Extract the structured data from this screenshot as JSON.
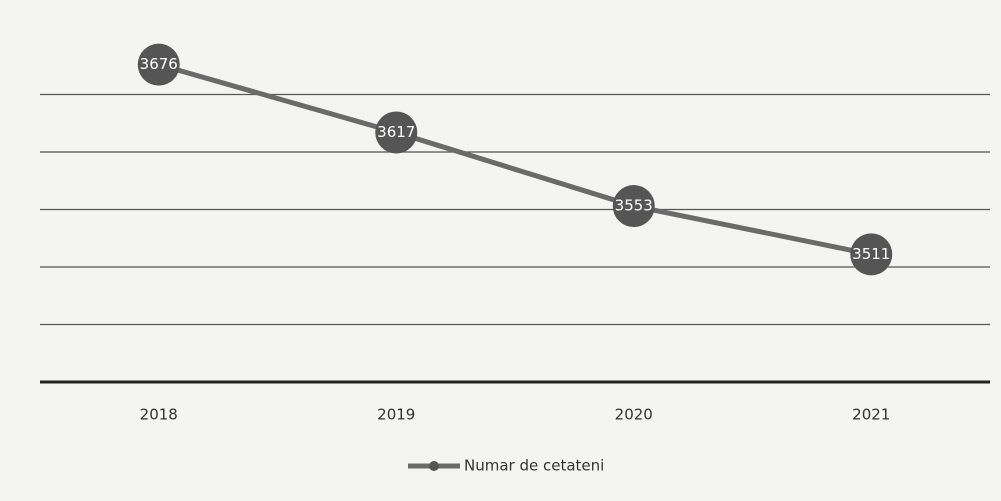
{
  "chart_data": {
    "type": "line",
    "categories": [
      "2018",
      "2019",
      "2020",
      "2021"
    ],
    "series": [
      {
        "name": "Numar de cetateni",
        "color": "#6a6a6a",
        "values": [
          3676,
          3617,
          3553,
          3511
        ]
      }
    ],
    "ylim": [
      3400,
      3700
    ],
    "yticks": [
      3400,
      3450,
      3500,
      3550,
      3600,
      3650
    ],
    "grid": true,
    "legend": "bottom"
  }
}
